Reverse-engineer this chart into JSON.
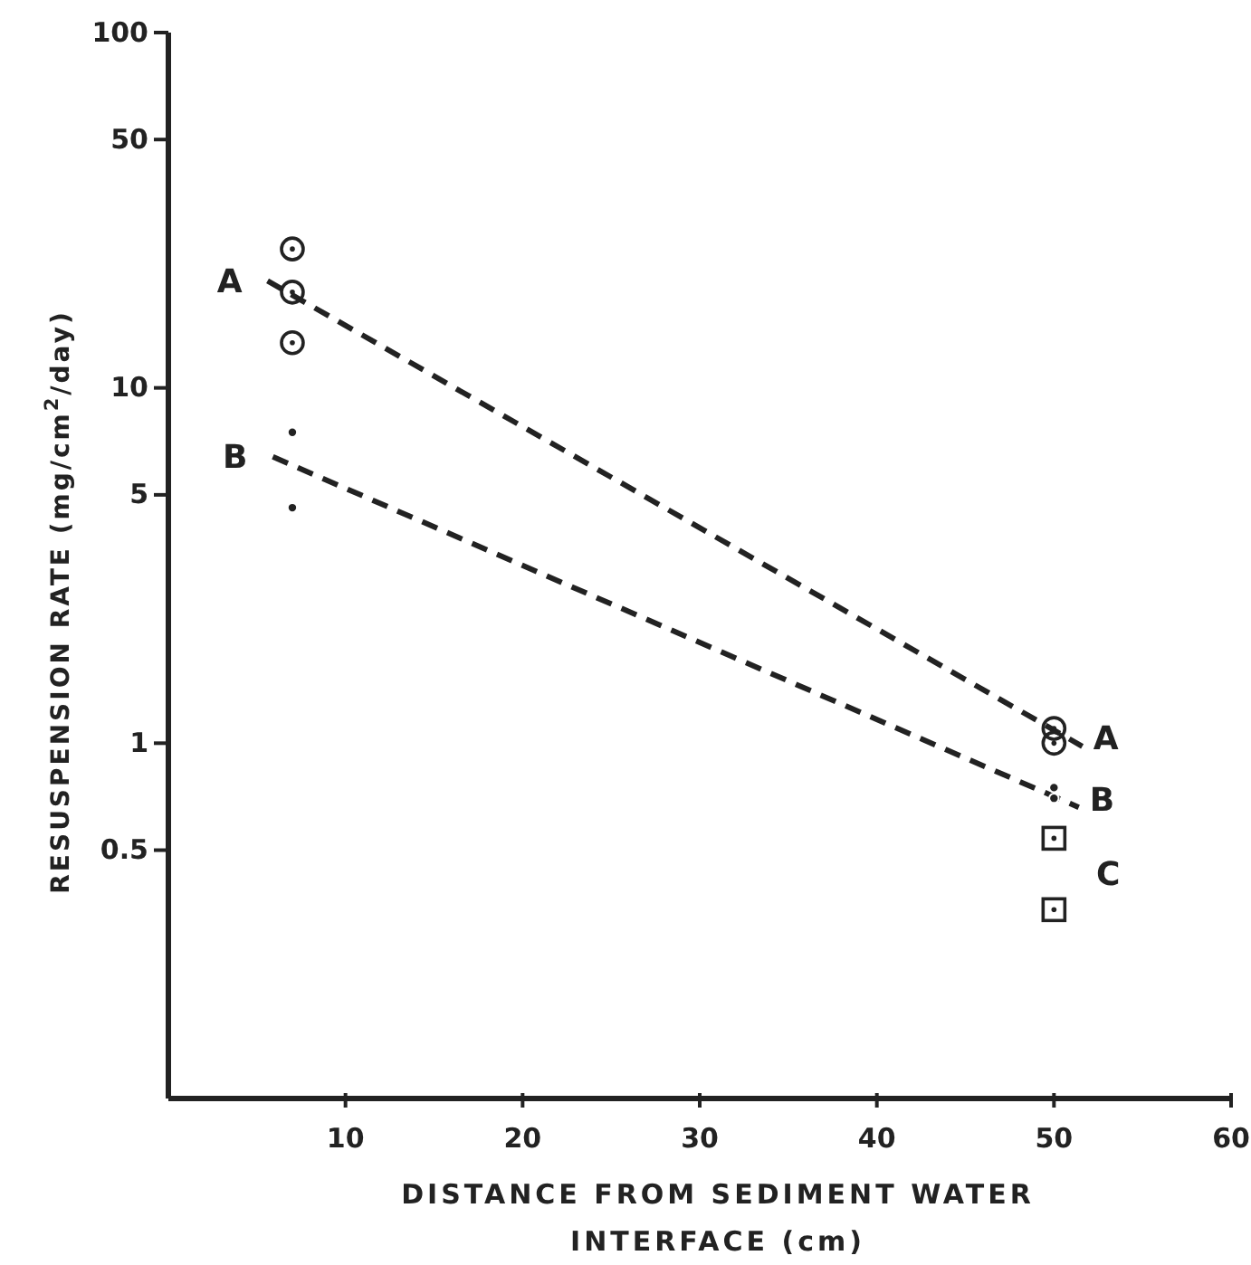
{
  "chart_data": {
    "type": "scatter",
    "xlabel": "DISTANCE FROM SEDIMENT WATER INTERFACE (cm)",
    "ylabel": "RESUSPENSION RATE (mg/cm$^{2}$/day)",
    "log": "y",
    "xlim": [
      0,
      60
    ],
    "ylim": [
      0.1,
      100
    ],
    "xticks": [
      10,
      20,
      30,
      40,
      50,
      60
    ],
    "yticks": [
      100,
      50,
      10,
      5,
      1,
      0.5
    ],
    "series": [
      {
        "marker": "circle",
        "color": "#222222",
        "x": [
          7,
          7,
          7,
          50,
          50
        ],
        "values": [
          24.6,
          18.6,
          13.4,
          1.1,
          1.0
        ]
      },
      {
        "color": "#222222",
        "x": [
          7,
          7,
          50,
          50
        ],
        "values": [
          7.5,
          4.6,
          0.75,
          0.7
        ]
      },
      {
        "name": "C",
        "marker": "square",
        "color": "#222222",
        "x": [
          50,
          50
        ],
        "values": [
          0.54,
          0.34
        ]
      },
      {
        "name": "A",
        "type": "line",
        "line_style": "dashed",
        "marker": "none",
        "color": "#222222",
        "x": [
          5.6,
          51.6
        ],
        "values": [
          20,
          0.98
        ]
      },
      {
        "name": "B",
        "type": "line",
        "line_style": "dashed",
        "marker": "none",
        "color": "#222222",
        "x": [
          5.9,
          51.4
        ],
        "values": [
          6.4,
          0.66
        ]
      }
    ]
  }
}
